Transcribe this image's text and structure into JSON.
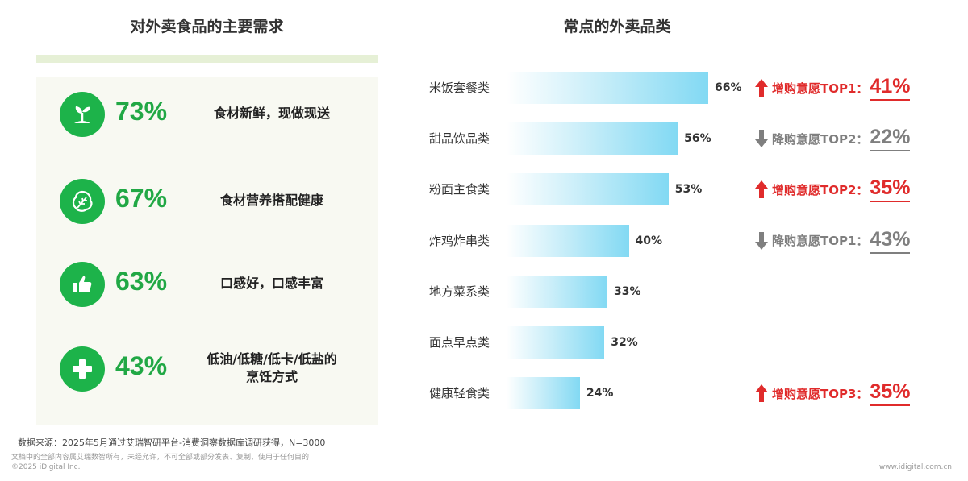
{
  "left": {
    "title": "对外卖食品的主要需求",
    "needs": [
      {
        "pct": "73%",
        "text": "食材新鲜，现做现送",
        "icon": "seedling-icon"
      },
      {
        "pct": "67%",
        "text": "食材营养搭配健康",
        "icon": "lettuce-icon"
      },
      {
        "pct": "63%",
        "text": "口感好，口感丰富",
        "icon": "thumbs-up-icon"
      },
      {
        "pct": "43%",
        "text_line1": "低油/低糖/低卡/低盐的",
        "text_line2": "烹饪方式",
        "icon": "plus-icon"
      }
    ]
  },
  "right": {
    "title": "常点的外卖品类",
    "notes": [
      {
        "direction": "up",
        "label": "增购意愿TOP1：",
        "value": "41%"
      },
      {
        "direction": "down",
        "label": "降购意愿TOP2：",
        "value": "22%"
      },
      {
        "direction": "up",
        "label": "增购意愿TOP2：",
        "value": "35%"
      },
      {
        "direction": "down",
        "label": "降购意愿TOP1：",
        "value": "43%"
      },
      {
        "direction": "up",
        "label": "增购意愿TOP3：",
        "value": "35%"
      }
    ]
  },
  "chart_data": {
    "type": "bar",
    "orientation": "horizontal",
    "title": "常点的外卖品类",
    "categories": [
      "米饭套餐类",
      "甜品饮品类",
      "粉面主食类",
      "炸鸡炸串类",
      "地方菜系类",
      "面点早点类",
      "健康轻食类"
    ],
    "values": [
      66,
      56,
      53,
      40,
      33,
      32,
      24
    ],
    "value_labels": [
      "66%",
      "56%",
      "53%",
      "40%",
      "33%",
      "32%",
      "24%"
    ],
    "unit": "%",
    "xlim": [
      0,
      100
    ],
    "grid": false,
    "legend": "none"
  },
  "footer": {
    "source": "数据来源：2025年5月通过艾瑞智研平台-消费洞察数据库调研获得，N=3000",
    "rights": "文档中的全部内容属艾瑞数智所有，未经允许，不可全部或部分发表、复制、使用于任何目的",
    "copyright": "©2025 iDigital Inc.",
    "url": "www.idigital.com.cn"
  },
  "colors": {
    "green": "#1db34a",
    "bar_end": "#82d9f3",
    "increase_red": "#e02b2b",
    "decrease_gray": "#7f7f7f"
  }
}
